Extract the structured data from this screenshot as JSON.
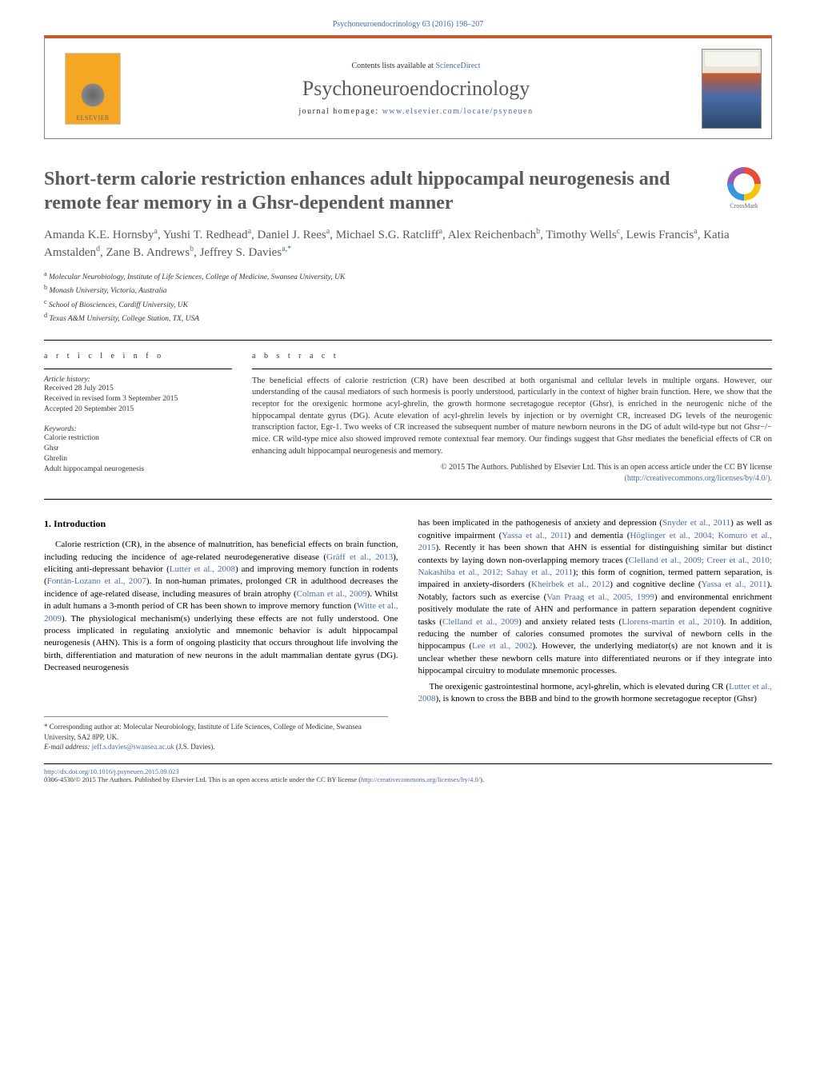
{
  "colors": {
    "link": "#4a6ba8",
    "accent": "#c85a2e",
    "heading_gray": "#5a5a5a",
    "text": "#000000",
    "muted": "#333333"
  },
  "top_ref": "Psychoneuroendocrinology 63 (2016) 198–207",
  "header": {
    "publisher": "ELSEVIER",
    "contents_prefix": "Contents lists available at ",
    "contents_link": "ScienceDirect",
    "journal": "Psychoneuroendocrinology",
    "homepage_prefix": "journal homepage: ",
    "homepage_url": "www.elsevier.com/locate/psyneuen"
  },
  "crossmark": "CrossMark",
  "title": "Short-term calorie restriction enhances adult hippocampal neurogenesis and remote fear memory in a Ghsr-dependent manner",
  "authors_html": "Amanda K.E. Hornsby|a|, Yushi T. Redhead|a|, Daniel J. Rees|a|, Michael S.G. Ratcliff|a|, Alex Reichenbach|b|, Timothy Wells|c|, Lewis Francis|a|, Katia Amstalden|d|, Zane B. Andrews|b|, Jeffrey S. Davies|a,*|",
  "affiliations": [
    {
      "sup": "a",
      "text": "Molecular Neurobiology, Institute of Life Sciences, College of Medicine, Swansea University, UK"
    },
    {
      "sup": "b",
      "text": "Monash University, Victoria, Australia"
    },
    {
      "sup": "c",
      "text": "School of Biosciences, Cardiff University, UK"
    },
    {
      "sup": "d",
      "text": "Texas A&M University, College Station, TX, USA"
    }
  ],
  "info_label": "a r t i c l e   i n f o",
  "abstract_label": "a b s t r a c t",
  "history": {
    "label": "Article history:",
    "items": [
      "Received 28 July 2015",
      "Received in revised form 3 September 2015",
      "Accepted 20 September 2015"
    ]
  },
  "keywords": {
    "label": "Keywords:",
    "items": [
      "Calorie restriction",
      "Ghsr",
      "Ghrelin",
      "Adult hippocampal neurogenesis"
    ]
  },
  "abstract": "The beneficial effects of calorie restriction (CR) have been described at both organismal and cellular levels in multiple organs. However, our understanding of the causal mediators of such hormesis is poorly understood, particularly in the context of higher brain function. Here, we show that the receptor for the orexigenic hormone acyl-ghrelin, the growth hormone secretagogue receptor (Ghsr), is enriched in the neurogenic niche of the hippocampal dentate gyrus (DG). Acute elevation of acyl-ghrelin levels by injection or by overnight CR, increased DG levels of the neurogenic transcription factor, Egr-1. Two weeks of CR increased the subsequent number of mature newborn neurons in the DG of adult wild-type but not Ghsr−/− mice. CR wild-type mice also showed improved remote contextual fear memory. Our findings suggest that Ghsr mediates the beneficial effects of CR on enhancing adult hippocampal neurogenesis and memory.",
  "copyright": {
    "line1": "© 2015 The Authors. Published by Elsevier Ltd. This is an open access article under the CC BY license",
    "license_url": "(http://creativecommons.org/licenses/by/4.0/)."
  },
  "intro_heading": "1. Introduction",
  "col1": "Calorie restriction (CR), in the absence of malnutrition, has beneficial effects on brain function, including reducing the incidence of age-related neurodegenerative disease (Gräff et al., 2013), eliciting anti-depressant behavior (Lutter et al., 2008) and improving memory function in rodents (Fontán-Lozano et al., 2007). In non-human primates, prolonged CR in adulthood decreases the incidence of age-related disease, including measures of brain atrophy (Colman et al., 2009). Whilst in adult humans a 3-month period of CR has been shown to improve memory function (Witte et al., 2009). The physiological mechanism(s) underlying these effects are not fully understood. One process implicated in regulating anxiolytic and mnemonic behavior is adult hippocampal neurogenesis (AHN). This is a form of ongoing plasticity that occurs throughout life involving the birth, differentiation and maturation of new neurons in the adult mammalian dentate gyrus (DG). Decreased neurogenesis",
  "col2": "has been implicated in the pathogenesis of anxiety and depression (Snyder et al., 2011) as well as cognitive impairment (Yassa et al., 2011) and dementia (Höglinger et al., 2004; Komuro et al., 2015). Recently it has been shown that AHN is essential for distinguishing similar but distinct contexts by laying down non-overlapping memory traces (Clelland et al., 2009; Creer et al., 2010; Nakashiba et al., 2012; Sahay et al., 2011); this form of cognition, termed pattern separation, is impaired in anxiety-disorders (Kheirbek et al., 2012) and cognitive decline (Yassa et al., 2011). Notably, factors such as exercise (Van Praag et al., 2005, 1999) and environmental enrichment positively modulate the rate of AHN and performance in pattern separation dependent cognitive tasks (Clelland et al., 2009) and anxiety related tests (Llorens-martín et al., 2010). In addition, reducing the number of calories consumed promotes the survival of newborn cells in the hippocampus (Lee et al., 2002). However, the underlying mediator(s) are not known and it is unclear whether these newborn cells mature into differentiated neurons or if they integrate into hippocampal circuitry to modulate mnemonic processes.",
  "col2b": "The orexigenic gastrointestinal hormone, acyl-ghrelin, which is elevated during CR (Lutter et al., 2008), is known to cross the BBB and bind to the growth hormone secretagogue receptor (Ghsr)",
  "footnotes": {
    "corr": "* Corresponding author at: Molecular Neurobiology, Institute of Life Sciences, College of Medicine, Swansea University, SA2 8PP, UK.",
    "email_label": "E-mail address: ",
    "email": "jeff.s.davies@swansea.ac.uk",
    "email_name": " (J.S. Davies)."
  },
  "doi": "http://dx.doi.org/10.1016/j.psyneuen.2015.09.023",
  "issn_line": "0306-4530/© 2015 The Authors. Published by Elsevier Ltd. This is an open access article under the CC BY license (",
  "issn_url": "http://creativecommons.org/licenses/by/4.0/",
  "issn_close": ")."
}
